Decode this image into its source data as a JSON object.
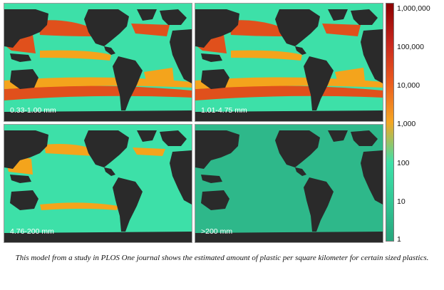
{
  "panels": [
    {
      "label": "0.33-1.00 mm",
      "level": "high"
    },
    {
      "label": "1.01-4.75 mm",
      "level": "high"
    },
    {
      "label": "4.76-200 mm",
      "level": "medium"
    },
    {
      "label": ">200 mm",
      "level": "low"
    }
  ],
  "legend": {
    "ticks": [
      "1,000,000",
      "100,000",
      "10,000",
      "1,000",
      "100",
      "10",
      "1"
    ],
    "colors": [
      "#8b0000",
      "#c8281e",
      "#ea5a1e",
      "#f5a623",
      "#3de0a8",
      "#33c795",
      "#27a57c"
    ]
  },
  "colors": {
    "land": "#2a2a2a",
    "ocean_low": "#2eb88a",
    "ocean_mid": "#3de0a8",
    "orange": "#f4a41c",
    "red": "#e0501c"
  },
  "caption": "This model from a study in PLOS One journal shows the estimated amount of plastic per square kilometer for certain sized plastics."
}
